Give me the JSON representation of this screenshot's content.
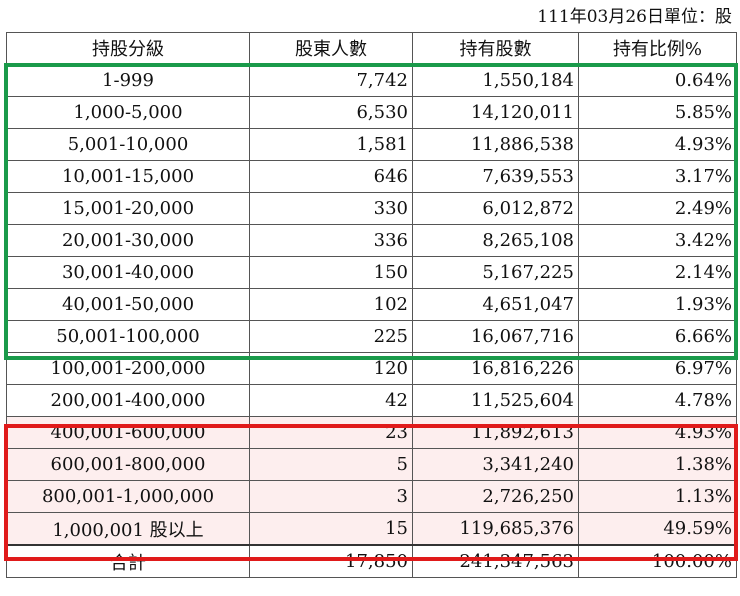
{
  "caption": "111年03月26日單位：股",
  "colors": {
    "green_highlight": "#1a9a4a",
    "red_highlight": "#e01a1a",
    "red_fill": "#fdeeee"
  },
  "table": {
    "headers": [
      "持股分級",
      "股東人數",
      "持有股數",
      "持有比例%"
    ],
    "rows": [
      {
        "range": "1-999",
        "holders": "7,742",
        "shares": "1,550,184",
        "pct": "0.64%"
      },
      {
        "range": "1,000-5,000",
        "holders": "6,530",
        "shares": "14,120,011",
        "pct": "5.85%"
      },
      {
        "range": "5,001-10,000",
        "holders": "1,581",
        "shares": "11,886,538",
        "pct": "4.93%"
      },
      {
        "range": "10,001-15,000",
        "holders": "646",
        "shares": "7,639,553",
        "pct": "3.17%"
      },
      {
        "range": "15,001-20,000",
        "holders": "330",
        "shares": "6,012,872",
        "pct": "2.49%"
      },
      {
        "range": "20,001-30,000",
        "holders": "336",
        "shares": "8,265,108",
        "pct": "3.42%"
      },
      {
        "range": "30,001-40,000",
        "holders": "150",
        "shares": "5,167,225",
        "pct": "2.14%"
      },
      {
        "range": "40,001-50,000",
        "holders": "102",
        "shares": "4,651,047",
        "pct": "1.93%"
      },
      {
        "range": "50,001-100,000",
        "holders": "225",
        "shares": "16,067,716",
        "pct": "6.66%"
      },
      {
        "range": "100,001-200,000",
        "holders": "120",
        "shares": "16,816,226",
        "pct": "6.97%"
      },
      {
        "range": "200,001-400,000",
        "holders": "42",
        "shares": "11,525,604",
        "pct": "4.78%"
      },
      {
        "range": "400,001-600,000",
        "holders": "23",
        "shares": "11,892,613",
        "pct": "4.93%"
      },
      {
        "range": "600,001-800,000",
        "holders": "5",
        "shares": "3,341,240",
        "pct": "1.38%"
      },
      {
        "range": "800,001-1,000,000",
        "holders": "3",
        "shares": "2,726,250",
        "pct": "1.13%"
      },
      {
        "range": "1,000,001 股以上",
        "holders": "15",
        "shares": "119,685,376",
        "pct": "49.59%"
      }
    ],
    "total": {
      "label": "合計",
      "holders": "17,850",
      "shares": "241,347,563",
      "pct": "100.00%"
    }
  }
}
